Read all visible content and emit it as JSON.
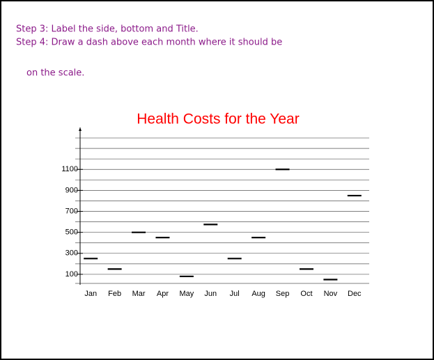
{
  "slide": {
    "lines": [
      "Step 3: Label the side, bottom and Title.",
      "Step 4:  Draw a dash above each month where it should be",
      "on the scale."
    ]
  },
  "chart_data": {
    "type": "dash",
    "title": "Health Costs for the Year",
    "categories": [
      "Jan",
      "Feb",
      "Mar",
      "Apr",
      "May",
      "Jun",
      "Jul",
      "Aug",
      "Sep",
      "Oct",
      "Nov",
      "Dec"
    ],
    "values": [
      250,
      150,
      500,
      450,
      80,
      575,
      250,
      450,
      1100,
      150,
      50,
      850
    ],
    "color": "#000000",
    "ylim": [
      0,
      1500
    ],
    "yticks": [
      100,
      300,
      500,
      700,
      900,
      1100
    ],
    "gridlines": [
      100,
      200,
      300,
      400,
      500,
      600,
      700,
      800,
      900,
      1000,
      1100,
      1200,
      1300,
      1400
    ],
    "grid": true
  }
}
